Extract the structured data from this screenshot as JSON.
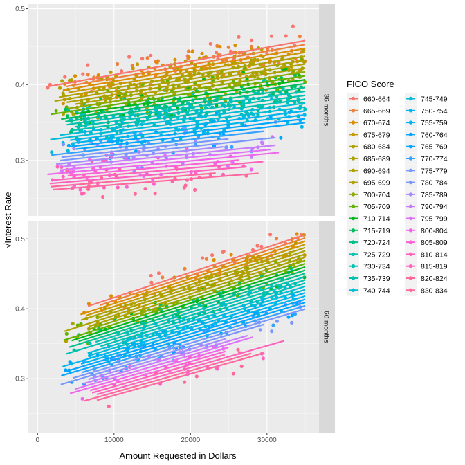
{
  "chart_data": {
    "type": "scatter",
    "xlabel": "Amount Requested in Dollars",
    "ylabel": "Interest Rate",
    "ylabel_sqrt": true,
    "xlim": [
      -1200,
      36800
    ],
    "x_ticks": [
      "0",
      "10000",
      "20000",
      "30000"
    ],
    "x_tick_values": [
      0,
      10000,
      20000,
      30000
    ],
    "grid": true,
    "legend_position": "right",
    "legend_title": "FICO Score",
    "panels": [
      {
        "label": "36 months",
        "ylim": [
          0.227,
          0.506
        ],
        "y_ticks": [
          "0.3",
          "0.4",
          "0.5"
        ],
        "y_tick_values": [
          0.3,
          0.4,
          0.5
        ]
      },
      {
        "label": "60 months",
        "ylim": [
          0.222,
          0.526
        ],
        "y_ticks": [
          "0.3",
          "0.4",
          "0.5"
        ],
        "y_tick_values": [
          0.3,
          0.4,
          0.5
        ]
      }
    ],
    "series": [
      {
        "name": "660-664",
        "color": "#F8766D"
      },
      {
        "name": "665-669",
        "color": "#EC8239"
      },
      {
        "name": "670-674",
        "color": "#DB8E00"
      },
      {
        "name": "675-679",
        "color": "#C79800"
      },
      {
        "name": "680-684",
        "color": "#AEA200"
      },
      {
        "name": "685-689",
        "color": "#AEA200"
      },
      {
        "name": "690-694",
        "color": "#AEA200"
      },
      {
        "name": "695-699",
        "color": "#AEA200"
      },
      {
        "name": "700-704",
        "color": "#8FAA00"
      },
      {
        "name": "705-709",
        "color": "#64B200"
      },
      {
        "name": "710-714",
        "color": "#00B81B"
      },
      {
        "name": "715-719",
        "color": "#00BD5C"
      },
      {
        "name": "720-724",
        "color": "#00C08E"
      },
      {
        "name": "725-729",
        "color": "#00C1B2"
      },
      {
        "name": "730-734",
        "color": "#00C1B2"
      },
      {
        "name": "735-739",
        "color": "#00C1B2"
      },
      {
        "name": "740-744",
        "color": "#00BCD6"
      },
      {
        "name": "745-749",
        "color": "#00BCD6"
      },
      {
        "name": "750-754",
        "color": "#00B5EE"
      },
      {
        "name": "755-759",
        "color": "#00B5EE"
      },
      {
        "name": "760-764",
        "color": "#00A6FF"
      },
      {
        "name": "765-769",
        "color": "#00A6FF"
      },
      {
        "name": "770-774",
        "color": "#35A2FF"
      },
      {
        "name": "775-779",
        "color": "#7997FF"
      },
      {
        "name": "780-784",
        "color": "#7997FF"
      },
      {
        "name": "785-789",
        "color": "#A58AFF"
      },
      {
        "name": "790-794",
        "color": "#C77CFF"
      },
      {
        "name": "795-799",
        "color": "#DF70F8"
      },
      {
        "name": "800-804",
        "color": "#F066EA"
      },
      {
        "name": "805-809",
        "color": "#FC61D5"
      },
      {
        "name": "810-814",
        "color": "#FF62BC"
      },
      {
        "name": "815-819",
        "color": "#FF62BC"
      },
      {
        "name": "820-824",
        "color": "#FF689E"
      },
      {
        "name": "830-834",
        "color": "#FF689E"
      }
    ]
  }
}
